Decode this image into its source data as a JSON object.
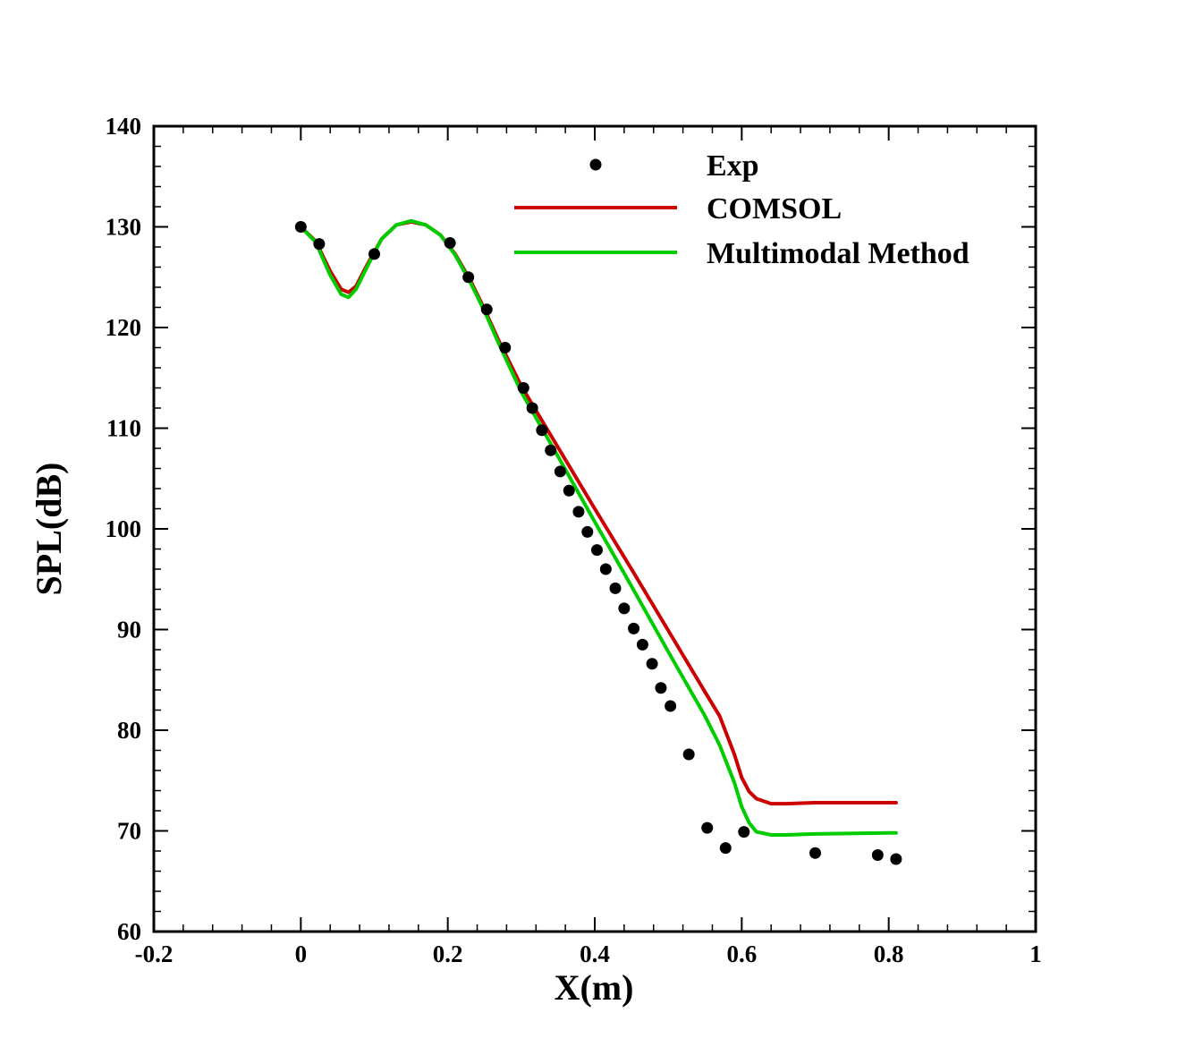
{
  "chart_data": {
    "type": "line",
    "xlabel": "X(m)",
    "ylabel": "SPL(dB)",
    "xlim": [
      -0.2,
      1
    ],
    "ylim": [
      60,
      140
    ],
    "xticks": [
      -0.2,
      0,
      0.2,
      0.4,
      0.6,
      0.8,
      1
    ],
    "xtick_labels": [
      "-0.2",
      "0",
      "0.2",
      "0.4",
      "0.6",
      "0.8",
      "1"
    ],
    "yticks": [
      60,
      70,
      80,
      90,
      100,
      110,
      120,
      130,
      140
    ],
    "ytick_labels": [
      "60",
      "70",
      "80",
      "90",
      "100",
      "110",
      "120",
      "130",
      "140"
    ],
    "grid": false,
    "legend": "top-right",
    "series": [
      {
        "name": "Exp",
        "kind": "scatter",
        "color": "#000000",
        "x": [
          0,
          0.025,
          0.1,
          0.203,
          0.228,
          0.253,
          0.278,
          0.303,
          0.315,
          0.328,
          0.34,
          0.353,
          0.365,
          0.378,
          0.39,
          0.403,
          0.415,
          0.428,
          0.44,
          0.453,
          0.465,
          0.478,
          0.49,
          0.503,
          0.528,
          0.553,
          0.578,
          0.603,
          0.7,
          0.785,
          0.81
        ],
        "y": [
          130,
          128.3,
          127.3,
          128.4,
          125,
          121.8,
          118,
          114,
          112,
          109.8,
          107.8,
          105.7,
          103.8,
          101.7,
          99.7,
          97.9,
          96,
          94.1,
          92.1,
          90.1,
          88.5,
          86.6,
          84.2,
          82.4,
          77.6,
          70.3,
          68.3,
          69.9,
          67.8,
          67.6,
          67.2
        ]
      },
      {
        "name": "COMSOL",
        "kind": "line",
        "color": "#cc0000",
        "x": [
          0,
          0.02,
          0.04,
          0.055,
          0.065,
          0.075,
          0.09,
          0.11,
          0.13,
          0.15,
          0.17,
          0.19,
          0.21,
          0.23,
          0.25,
          0.27,
          0.3,
          0.35,
          0.4,
          0.45,
          0.5,
          0.55,
          0.57,
          0.59,
          0.6,
          0.61,
          0.62,
          0.64,
          0.66,
          0.7,
          0.8,
          0.81
        ],
        "y": [
          130,
          128.6,
          125.6,
          123.8,
          123.5,
          124.1,
          126.2,
          128.8,
          130.2,
          130.5,
          130.2,
          129.2,
          127.3,
          124.8,
          121.8,
          118.6,
          114.2,
          108.1,
          102.0,
          96.0,
          89.9,
          83.8,
          81.4,
          77.6,
          75.3,
          73.9,
          73.2,
          72.7,
          72.7,
          72.8,
          72.8,
          72.8
        ]
      },
      {
        "name": "Multimodal Method",
        "kind": "line",
        "color": "#00cc00",
        "x": [
          0,
          0.02,
          0.04,
          0.055,
          0.065,
          0.075,
          0.09,
          0.11,
          0.13,
          0.15,
          0.17,
          0.19,
          0.21,
          0.23,
          0.25,
          0.27,
          0.3,
          0.35,
          0.4,
          0.45,
          0.5,
          0.55,
          0.57,
          0.59,
          0.6,
          0.61,
          0.62,
          0.64,
          0.66,
          0.7,
          0.8,
          0.81
        ],
        "y": [
          130,
          128.5,
          125.2,
          123.3,
          123.0,
          123.8,
          126.0,
          128.8,
          130.2,
          130.6,
          130.2,
          129.2,
          127.2,
          124.6,
          121.6,
          118.3,
          113.6,
          107.2,
          100.7,
          94.3,
          87.8,
          81.4,
          78.5,
          74.8,
          72.4,
          70.8,
          69.9,
          69.6,
          69.6,
          69.7,
          69.8,
          69.8
        ]
      }
    ]
  }
}
